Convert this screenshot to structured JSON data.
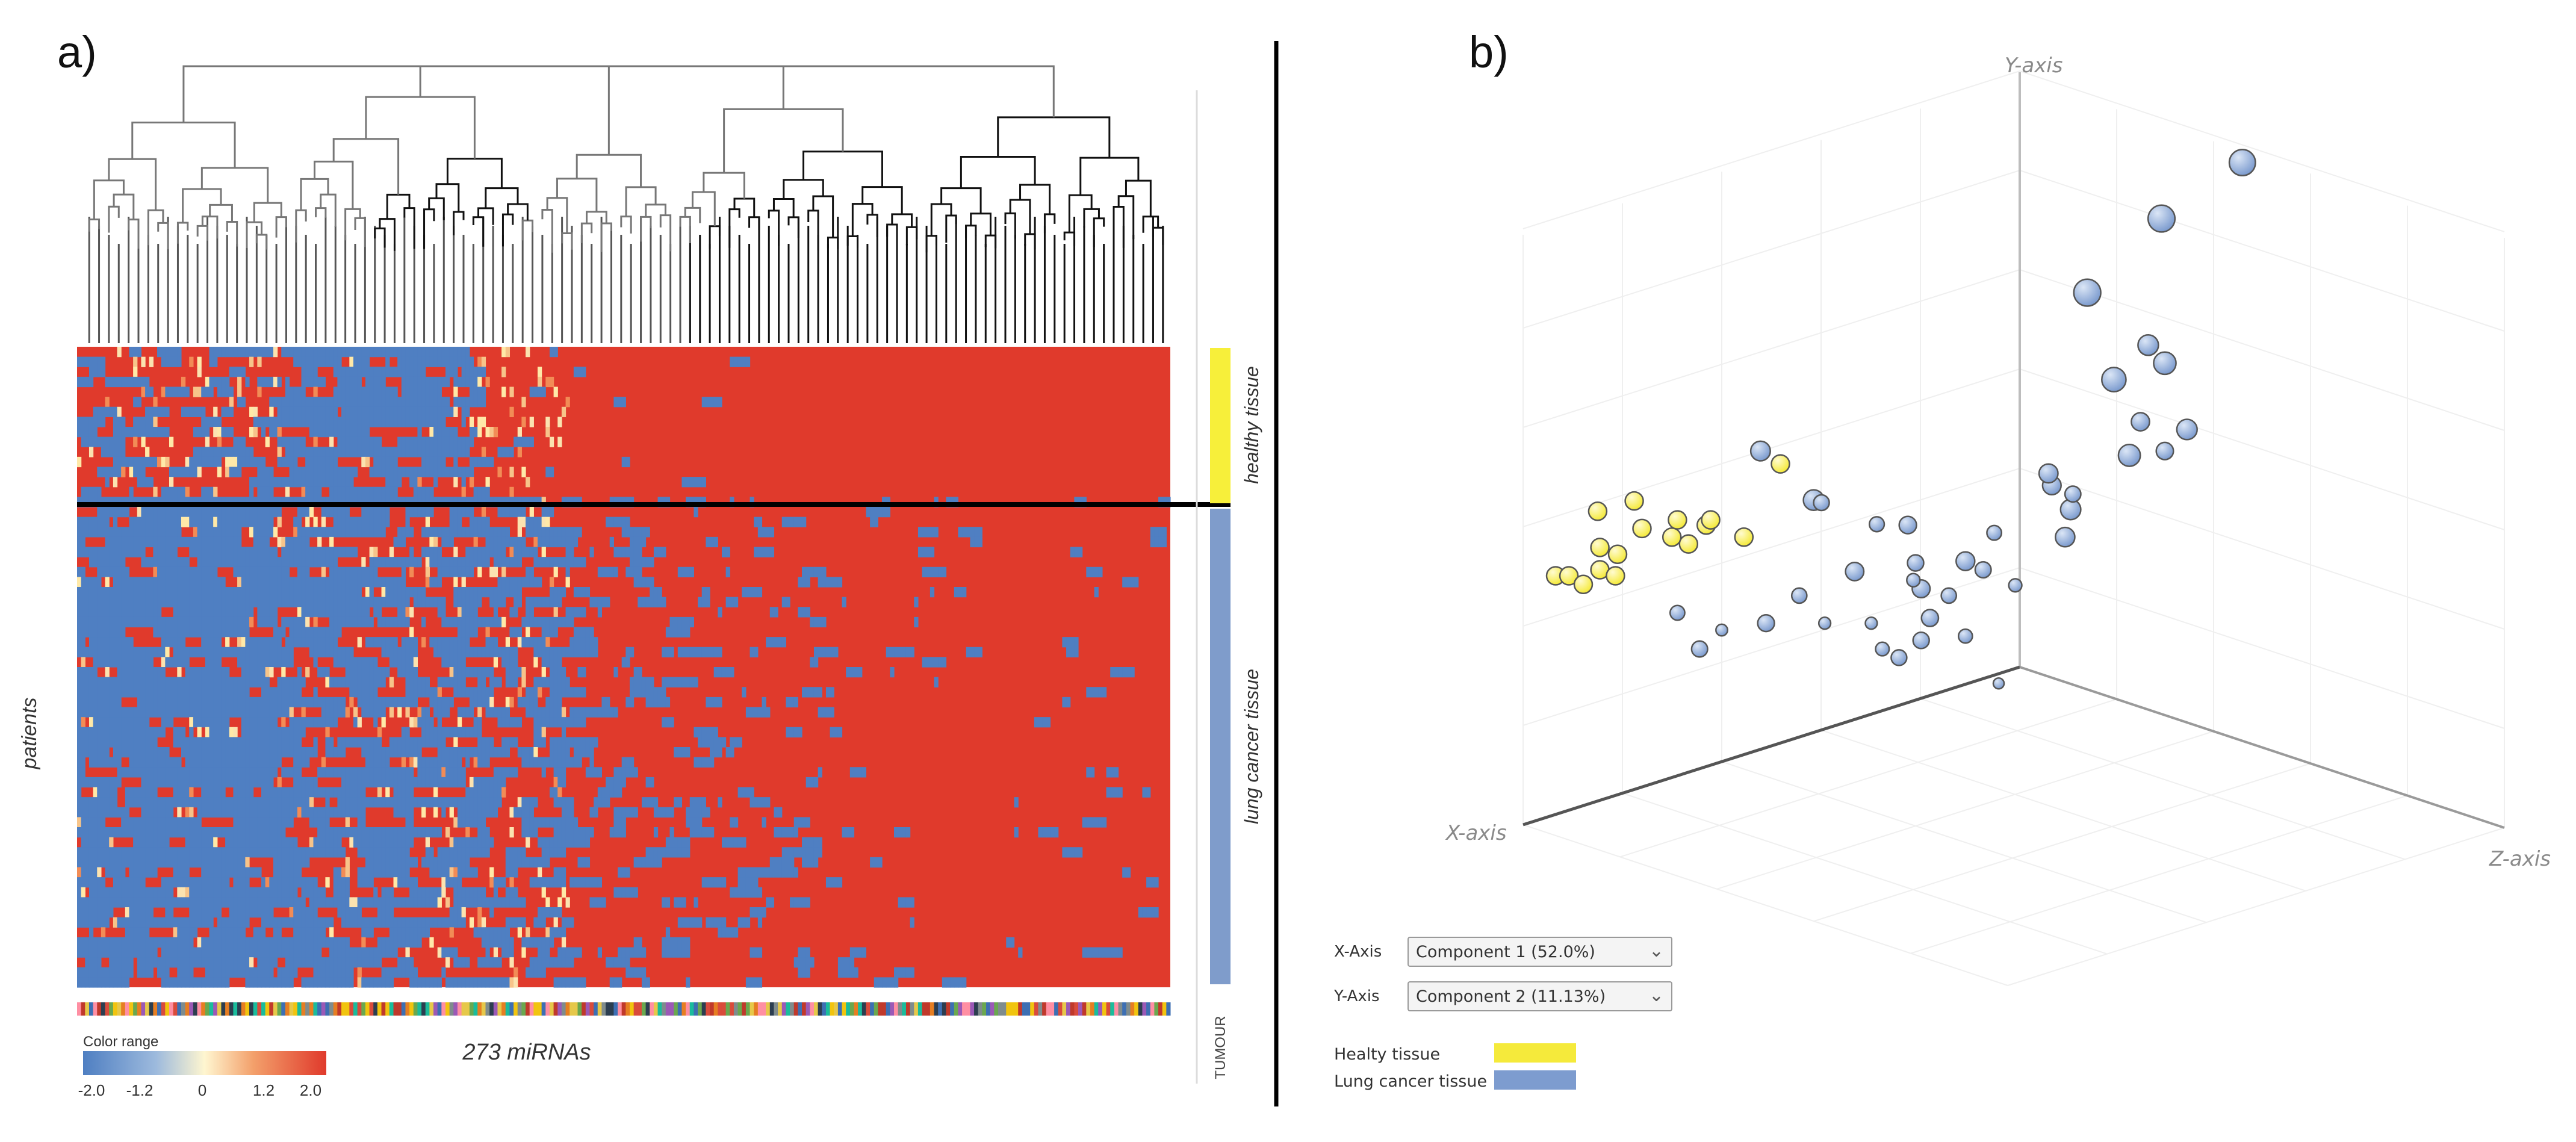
{
  "panel_a": {
    "label": "a)",
    "y_label": "patients",
    "x_label": "273 miRNAs",
    "group_labels": [
      "healthy tissue",
      "lung cancer tissue"
    ],
    "tumour_label": "TUMOUR",
    "color_range": {
      "title": "Color range",
      "ticks": [
        "-2.0",
        "-1.2",
        "0",
        "1.2",
        "2.0"
      ],
      "colors": {
        "low": "#4f7fc2",
        "mid": "#fff6d0",
        "high": "#e03a2c"
      }
    },
    "group_colors": {
      "healthy": "#f7ef3a",
      "cancer": "#7f9ccb"
    }
  },
  "panel_b": {
    "label": "b)",
    "axis_names": {
      "x": "X-axis",
      "y": "Y-axis",
      "z": "Z-axis"
    },
    "controls": {
      "x_axis_label": "X-Axis",
      "x_axis_value": "Component 1 (52.0%)",
      "y_axis_label": "Y-Axis",
      "y_axis_value": "Component 2 (11.13%)"
    },
    "legend": [
      {
        "label": "Healty tissue",
        "color": "#f5ea3b"
      },
      {
        "label": "Lung cancer tissue",
        "color": "#7d9ccf"
      }
    ]
  },
  "chart_data": [
    {
      "type": "heatmap",
      "rows": "patients",
      "columns": "273 miRNAs",
      "groups": [
        "healthy tissue",
        "lung cancer tissue"
      ],
      "color_scale": [
        -2.0,
        -1.2,
        0,
        1.2,
        2.0
      ]
    },
    {
      "type": "scatter",
      "projection": "3d",
      "x_axis": "Component 1 (52.0%)",
      "y_axis": "Component 2 (11.13%)",
      "series": [
        {
          "name": "Healty tissue",
          "points_screen_relative": [
            [
              0.1,
              0.585
            ],
            [
              0.112,
              0.585
            ],
            [
              0.125,
              0.595
            ],
            [
              0.14,
              0.578
            ],
            [
              0.154,
              0.585
            ],
            [
              0.14,
              0.552
            ],
            [
              0.156,
              0.56
            ],
            [
              0.171,
              0.498
            ],
            [
              0.178,
              0.53
            ],
            [
              0.205,
              0.54
            ],
            [
              0.21,
              0.52
            ],
            [
              0.22,
              0.548
            ],
            [
              0.236,
              0.526
            ],
            [
              0.24,
              0.52
            ],
            [
              0.27,
              0.54
            ],
            [
              0.303,
              0.455
            ],
            [
              0.138,
              0.51
            ]
          ]
        },
        {
          "name": "Lung cancer tissue",
          "points_screen_relative": [
            [
              0.72,
              0.105
            ],
            [
              0.647,
              0.17
            ],
            [
              0.58,
              0.256
            ],
            [
              0.635,
              0.317
            ],
            [
              0.65,
              0.338
            ],
            [
              0.604,
              0.357
            ],
            [
              0.628,
              0.406
            ],
            [
              0.67,
              0.415
            ],
            [
              0.618,
              0.445
            ],
            [
              0.65,
              0.44
            ],
            [
              0.548,
              0.48
            ],
            [
              0.565,
              0.508
            ],
            [
              0.567,
              0.49
            ],
            [
              0.285,
              0.44
            ],
            [
              0.333,
              0.497
            ],
            [
              0.39,
              0.525
            ],
            [
              0.425,
              0.57
            ],
            [
              0.43,
              0.6
            ],
            [
              0.496,
              0.535
            ],
            [
              0.418,
              0.526
            ],
            [
              0.37,
              0.58
            ],
            [
              0.423,
              0.59
            ],
            [
              0.455,
              0.608
            ],
            [
              0.47,
              0.568
            ],
            [
              0.515,
              0.596
            ],
            [
              0.486,
              0.578
            ],
            [
              0.438,
              0.634
            ],
            [
              0.385,
              0.64
            ],
            [
              0.395,
              0.67
            ],
            [
              0.43,
              0.66
            ],
            [
              0.343,
              0.64
            ],
            [
              0.32,
              0.608
            ],
            [
              0.29,
              0.64
            ],
            [
              0.25,
              0.648
            ],
            [
              0.21,
              0.628
            ],
            [
              0.23,
              0.67
            ],
            [
              0.34,
              0.5
            ],
            [
              0.545,
              0.466
            ],
            [
              0.56,
              0.54
            ],
            [
              0.5,
              0.71
            ],
            [
              0.47,
              0.655
            ],
            [
              0.41,
              0.68
            ]
          ]
        }
      ]
    }
  ]
}
